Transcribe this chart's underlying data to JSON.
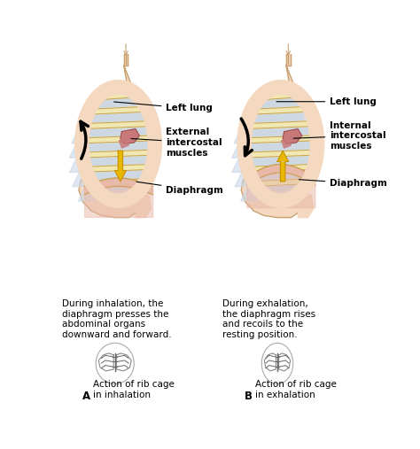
{
  "background_color": "#ffffff",
  "skin_color": "#f5d8c0",
  "skin_edge": "#c8a070",
  "rib_color": "#f0e8b0",
  "rib_edge": "#c8a050",
  "lung_color": "#c8d8e8",
  "diaphragm_color": "#e8b8a8",
  "muscle_red": "#c87878",
  "arrow_yellow": "#e8b800",
  "arrow_yellow_edge": "#c89000",
  "text_color": "#000000",
  "label_left_lung": "Left lung",
  "label_ext_muscle": "External\nintercostal\nmuscles",
  "label_int_muscle": "Internal\nintercostal\nmuscles",
  "label_diaphragm": "Diaphragm",
  "desc_A": "During inhalation, the\ndiaphragm presses the\nabdominal organs\ndownward and forward.",
  "desc_B": "During exhalation,\nthe diaphragm rises\nand recoils to the\nresting position.",
  "caption_A": "Action of rib cage\nin inhalation",
  "caption_B": "Action of rib cage\nin exhalation",
  "label_A": "A",
  "label_B": "B",
  "figsize": [
    4.74,
    5.07
  ],
  "dpi": 100
}
